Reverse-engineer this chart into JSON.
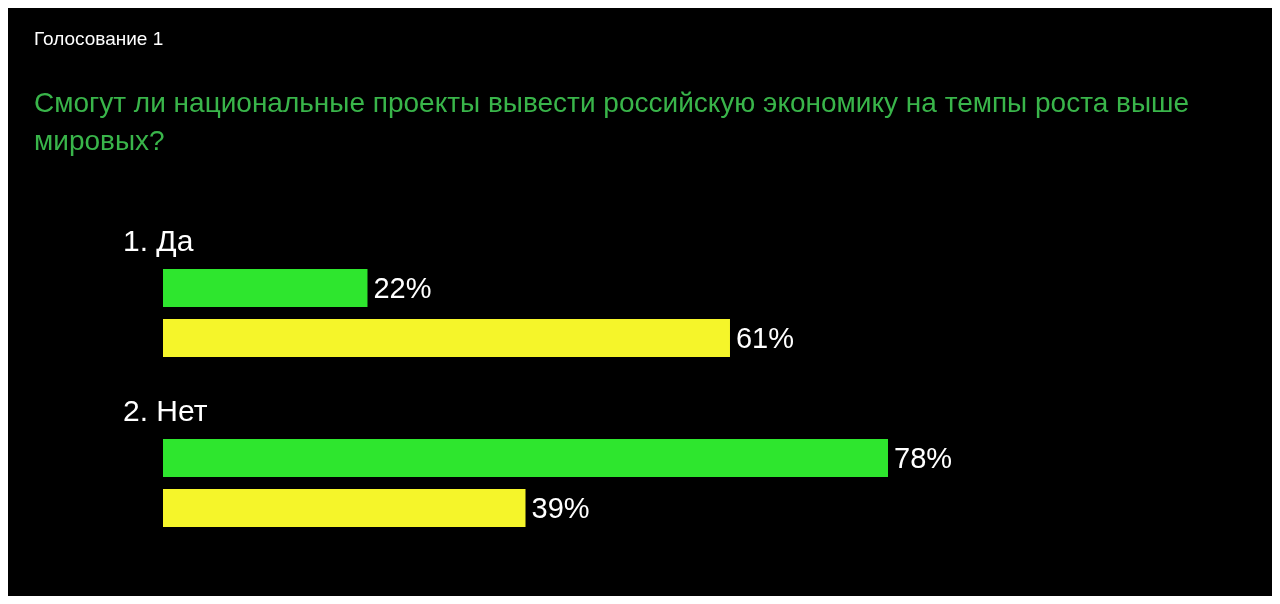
{
  "chart_data": {
    "type": "bar",
    "orientation": "horizontal",
    "title": "Голосование 1",
    "subtitle": "Смогут ли национальные проекты вывести российскую экономику на темпы роста выше мировых?",
    "categories": [
      "1. Да",
      "2. Нет"
    ],
    "series": [
      {
        "color": "#2ee62e",
        "values": [
          22,
          78
        ],
        "value_labels": [
          "22%",
          "78%"
        ]
      },
      {
        "color": "#f5f52a",
        "values": [
          61,
          39
        ],
        "value_labels": [
          "61%",
          "39%"
        ]
      }
    ],
    "legend": false,
    "grid": false
  }
}
